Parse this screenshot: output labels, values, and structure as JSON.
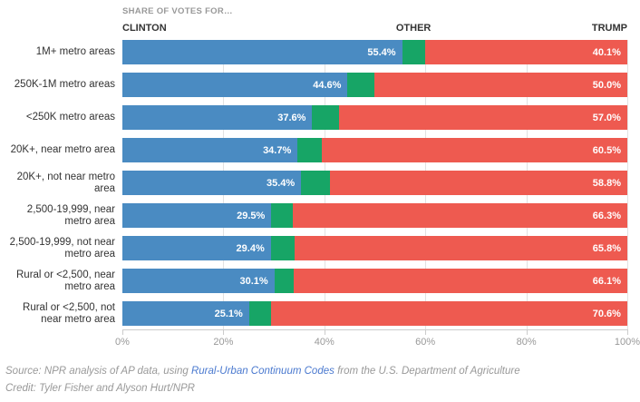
{
  "header": {
    "kicker": "SHARE OF VOTES FOR…",
    "columns": {
      "left": "CLINTON",
      "mid": "OTHER",
      "right": "TRUMP"
    }
  },
  "colors": {
    "clinton": "#4a8bc2",
    "other": "#17a566",
    "trump": "#ee5a50",
    "grid": "#e2e2e2",
    "axis": "#cccccc"
  },
  "chart_data": {
    "type": "bar",
    "orientation": "horizontal-stacked",
    "title": "SHARE OF VOTES FOR…",
    "categories": [
      "1M+ metro areas",
      "250K-1M metro areas",
      "<250K metro areas",
      "20K+, near metro area",
      "20K+, not near metro area",
      "2,500-19,999, near metro area",
      "2,500-19,999, not near metro area",
      "Rural or <2,500, near metro area",
      "Rural or <2,500, not near metro area"
    ],
    "series": [
      {
        "name": "Clinton",
        "values": [
          55.4,
          44.6,
          37.6,
          34.7,
          35.4,
          29.5,
          29.4,
          30.1,
          25.1
        ],
        "labels": [
          "55.4%",
          "44.6%",
          "37.6%",
          "34.7%",
          "35.4%",
          "29.5%",
          "29.4%",
          "30.1%",
          "25.1%"
        ]
      },
      {
        "name": "Other",
        "values": [
          4.5,
          5.4,
          5.4,
          4.8,
          5.8,
          4.2,
          4.8,
          3.8,
          4.3
        ],
        "labels": [
          "",
          "",
          "",
          "",
          "",
          "",
          "",
          "",
          ""
        ]
      },
      {
        "name": "Trump",
        "values": [
          40.1,
          50.0,
          57.0,
          60.5,
          58.8,
          66.3,
          65.8,
          66.1,
          70.6
        ],
        "labels": [
          "40.1%",
          "50.0%",
          "57.0%",
          "60.5%",
          "58.8%",
          "66.3%",
          "65.8%",
          "66.1%",
          "70.6%"
        ]
      }
    ],
    "xlim": [
      0,
      100
    ],
    "x_ticks": [
      {
        "value": 0,
        "label": "0%"
      },
      {
        "value": 20,
        "label": "20%"
      },
      {
        "value": 40,
        "label": "40%"
      },
      {
        "value": 60,
        "label": "60%"
      },
      {
        "value": 80,
        "label": "80%"
      },
      {
        "value": 100,
        "label": "100%"
      }
    ],
    "grid": true,
    "legend_position": "top"
  },
  "footer": {
    "source_prefix": "Source: NPR analysis of AP data, using ",
    "source_link": "Rural-Urban Continuum Codes",
    "source_suffix": " from the U.S. Department of Agriculture",
    "credit": "Credit: Tyler Fisher and Alyson Hurt/NPR"
  }
}
